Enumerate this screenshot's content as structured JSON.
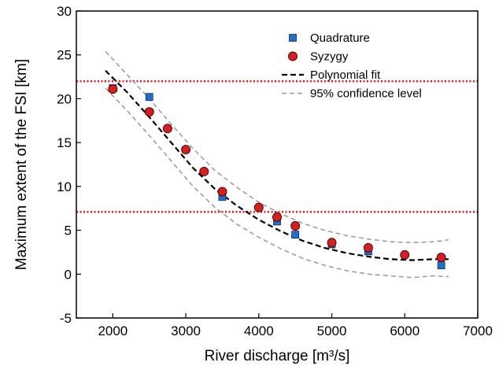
{
  "chart_data": {
    "type": "scatter",
    "xlabel": "River discharge [m³/s]",
    "ylabel": "Maximum extent of the FSI [km]",
    "xlim": [
      1500,
      7000
    ],
    "ylim": [
      -5,
      30
    ],
    "xticks": [
      "2000",
      "3000",
      "4000",
      "5000",
      "6000",
      "7000"
    ],
    "yticks": [
      "-5",
      "0",
      "5",
      "10",
      "15",
      "20",
      "25",
      "30"
    ],
    "grid": false,
    "legend_position": "top-right",
    "series": [
      {
        "name": "Quadrature",
        "marker": "square",
        "color": "#1f6fd1",
        "x": [
          2000,
          2500,
          3500,
          4250,
          4500,
          5000,
          5500,
          6500
        ],
        "y": [
          21.2,
          20.2,
          8.8,
          6.0,
          4.5,
          3.4,
          2.6,
          1.0
        ]
      },
      {
        "name": "Syzygy",
        "marker": "circle",
        "color": "#dd1c1c",
        "x": [
          2000,
          2500,
          2750,
          3000,
          3250,
          3500,
          4000,
          4250,
          4500,
          5000,
          5500,
          6000,
          6500
        ],
        "y": [
          21.1,
          18.5,
          16.6,
          14.2,
          11.7,
          9.4,
          7.6,
          6.5,
          5.5,
          3.6,
          3.0,
          2.2,
          1.9
        ]
      },
      {
        "name": "Polynomial fit",
        "style": "dashed",
        "color": "#000000",
        "x": [
          1900,
          2200,
          2500,
          2800,
          3100,
          3400,
          3700,
          4000,
          4300,
          4600,
          4900,
          5200,
          5500,
          5800,
          6100,
          6400,
          6600
        ],
        "y": [
          23.2,
          20.7,
          17.9,
          15.0,
          12.1,
          9.7,
          7.8,
          6.2,
          4.9,
          3.8,
          3.0,
          2.4,
          2.0,
          1.7,
          1.6,
          1.7,
          1.7
        ]
      },
      {
        "name": "95% confidence level",
        "style": "dashed",
        "color": "#999999",
        "x": [
          1900,
          2200,
          2500,
          2800,
          3100,
          3400,
          3700,
          4000,
          4300,
          4600,
          4900,
          5200,
          5500,
          5800,
          6100,
          6400,
          6600
        ],
        "y": [
          25.4,
          22.7,
          20.0,
          17.1,
          14.3,
          11.8,
          9.9,
          8.2,
          6.9,
          5.8,
          5.0,
          4.4,
          4.0,
          3.7,
          3.6,
          3.7,
          3.9
        ]
      },
      {
        "name": "",
        "style": "dashed",
        "color": "#999999",
        "x": [
          1900,
          2200,
          2500,
          2800,
          3100,
          3400,
          3700,
          4000,
          4300,
          4600,
          4900,
          5200,
          5500,
          5800,
          6100,
          6400,
          6600
        ],
        "y": [
          21.2,
          18.6,
          15.8,
          12.9,
          10.0,
          7.6,
          5.7,
          4.2,
          2.9,
          1.8,
          1.0,
          0.4,
          0.0,
          -0.2,
          -0.4,
          -0.2,
          -0.3
        ]
      }
    ],
    "reference_lines": [
      {
        "y": 22.0,
        "color": "#e01f1f",
        "style": "dotted"
      },
      {
        "y": 7.1,
        "color": "#e01f1f",
        "style": "dotted"
      }
    ]
  }
}
